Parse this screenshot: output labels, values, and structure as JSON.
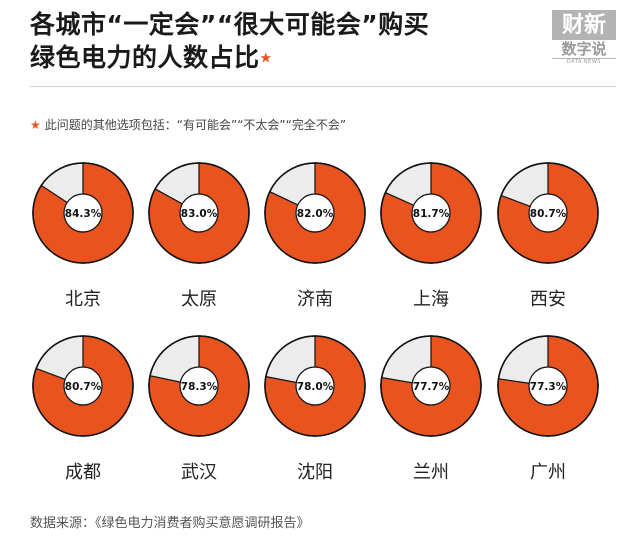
{
  "header": {
    "title_line1": "各城市“一定会”“很大可能会”购买",
    "title_line2": "绿色电力的人数占比",
    "title_star": "★"
  },
  "logo": {
    "top": "财新",
    "mid": "数字说",
    "sub": "DATA.NEWS"
  },
  "note": {
    "star": "★",
    "text": "此问题的其他选项包括：“有可能会”“不太会”“完全不会”"
  },
  "source": "数据来源：《绿色电力消费者购买意愿调研报告》",
  "colors": {
    "accent": "#e8531e",
    "remainder": "#ececec"
  },
  "chart_data": {
    "type": "pie",
    "subtype": "donut",
    "unit": "%",
    "categories": [
      "北京",
      "太原",
      "济南",
      "上海",
      "西安",
      "成都",
      "武汉",
      "沈阳",
      "兰州",
      "广州"
    ],
    "values": [
      84.3,
      83.0,
      82.0,
      81.7,
      80.7,
      80.7,
      78.3,
      78.0,
      77.7,
      77.3
    ],
    "labels": [
      "84.3%",
      "83.0%",
      "82.0%",
      "81.7%",
      "80.7%",
      "80.7%",
      "78.3%",
      "78.0%",
      "77.7%",
      "77.3%"
    ]
  }
}
